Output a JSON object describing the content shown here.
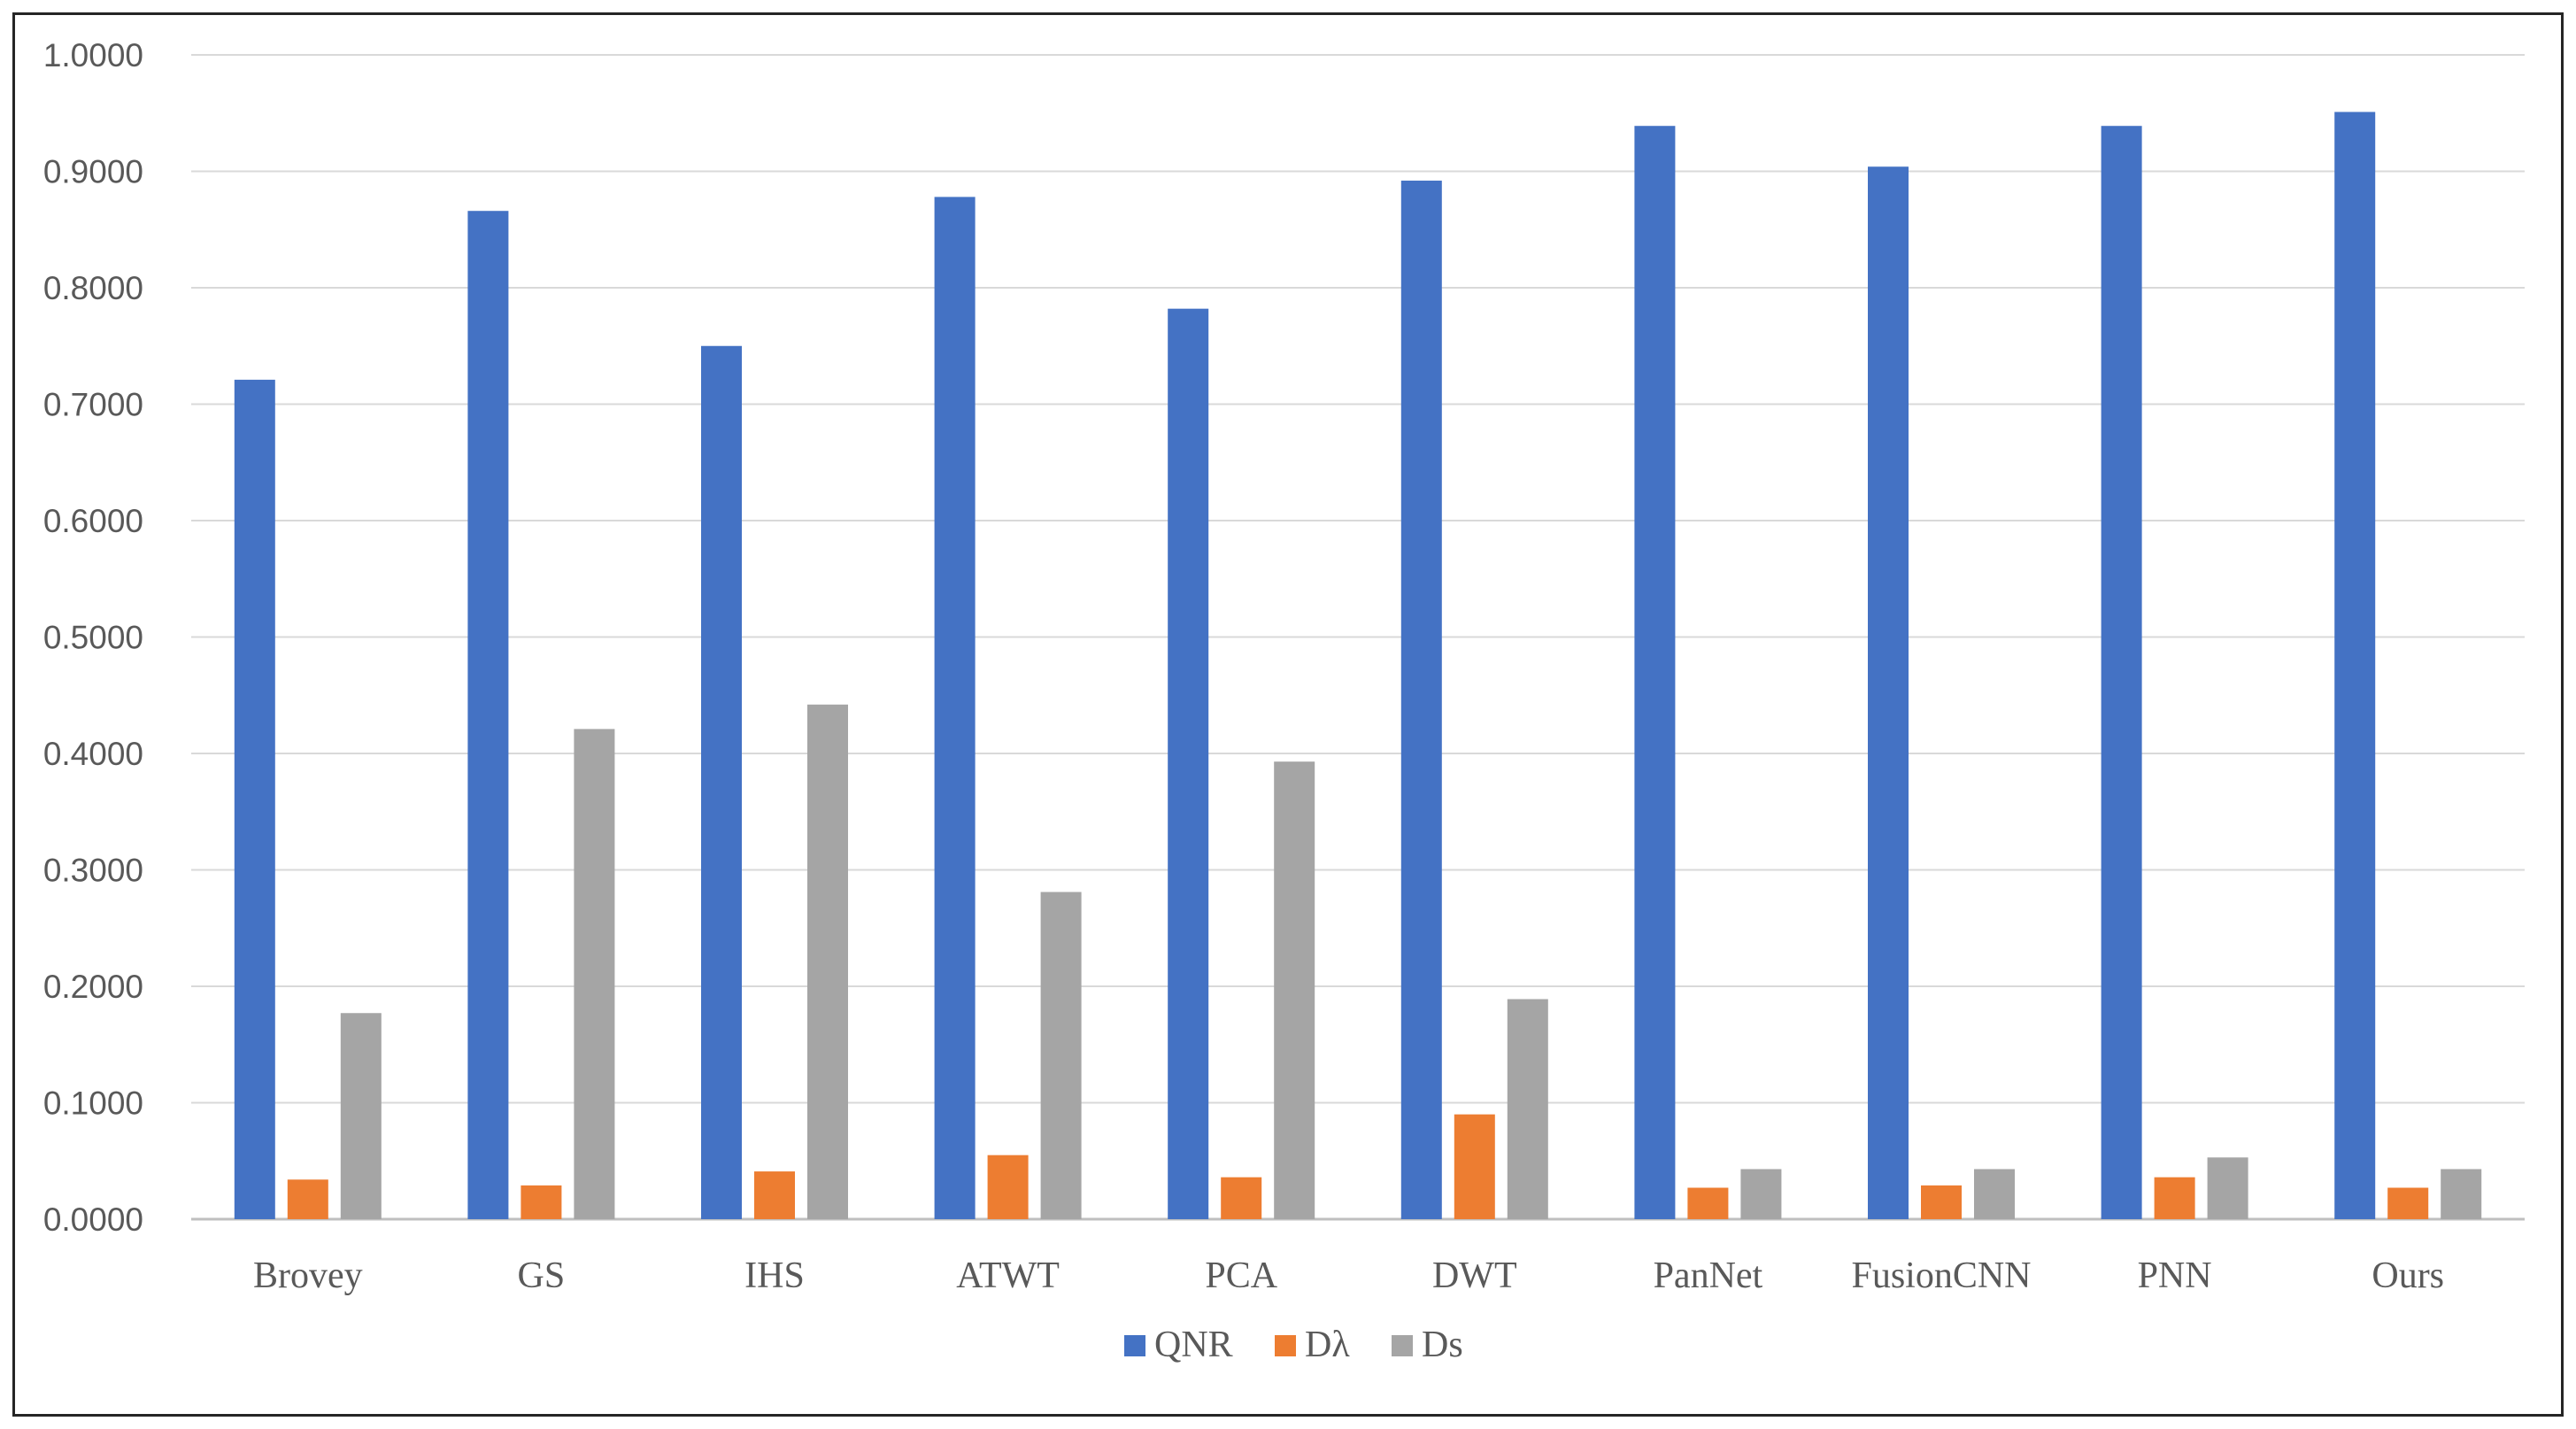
{
  "chart_data": {
    "type": "bar",
    "categories": [
      "Brovey",
      "GS",
      "IHS",
      "ATWT",
      "PCA",
      "DWT",
      "PanNet",
      "FusionCNN",
      "PNN",
      "Ours"
    ],
    "series": [
      {
        "name": "QNR",
        "color": "#4472C4",
        "values": [
          0.721,
          0.866,
          0.75,
          0.878,
          0.782,
          0.892,
          0.939,
          0.904,
          0.939,
          0.951
        ]
      },
      {
        "name": "Dλ",
        "color": "#ED7D31",
        "values": [
          0.034,
          0.029,
          0.041,
          0.055,
          0.036,
          0.09,
          0.027,
          0.029,
          0.036,
          0.027
        ]
      },
      {
        "name": "Ds",
        "color": "#A5A5A5",
        "values": [
          0.177,
          0.421,
          0.442,
          0.281,
          0.393,
          0.189,
          0.043,
          0.043,
          0.053,
          0.043
        ]
      }
    ],
    "yticks": [
      "0.0000",
      "0.1000",
      "0.2000",
      "0.3000",
      "0.4000",
      "0.5000",
      "0.6000",
      "0.7000",
      "0.8000",
      "0.9000",
      "1.0000"
    ],
    "ylim": [
      0,
      1
    ],
    "grid": true,
    "legend_position": "bottom-center",
    "title": "",
    "xlabel": "",
    "ylabel": ""
  }
}
